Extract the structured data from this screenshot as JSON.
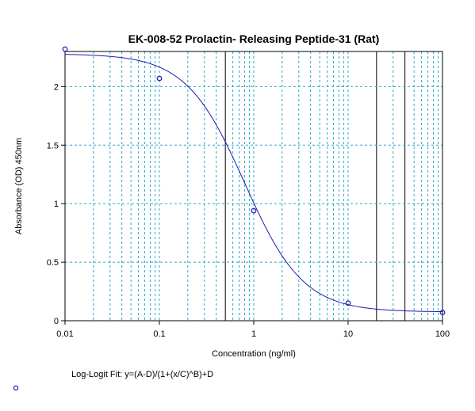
{
  "chart_data": {
    "type": "scatter",
    "title": "EK-008-52 Prolactin- Releasing Peptide-31 (Rat)",
    "xlabel": "Concentration (ng/ml)",
    "ylabel": "Absorbance (OD) 450nm",
    "x_scale": "log",
    "xlim": [
      0.01,
      100
    ],
    "ylim": [
      0,
      2.3
    ],
    "x_ticks": [
      "0.01",
      "0.1",
      "1",
      "10",
      "100"
    ],
    "y_ticks": [
      "0",
      "0.5",
      "1",
      "1.5",
      "2"
    ],
    "y_tick_values": [
      0,
      0.5,
      1,
      1.5,
      2
    ],
    "x_tick_values": [
      0.01,
      0.1,
      1,
      10,
      100
    ],
    "grid": true,
    "dark_gridlines_x": [
      0.5,
      20,
      40
    ],
    "series": [
      {
        "points": [
          {
            "x": 0.01,
            "y": 2.32
          },
          {
            "x": 0.1,
            "y": 2.07
          },
          {
            "x": 1,
            "y": 0.94
          },
          {
            "x": 10,
            "y": 0.15
          },
          {
            "x": 100,
            "y": 0.07
          }
        ]
      }
    ],
    "fit_curve": {
      "model": "Log-Logit Fit: y=(A-D)/(1+(x/C)^B)+D",
      "params": {
        "A": 2.28,
        "B": 1.4,
        "C": 0.8,
        "D": 0.075
      }
    },
    "footnote": "Log-Logit Fit: y=(A-D)/(1+(x/C)^B)+D",
    "colors": {
      "curve": "#1c1cb4",
      "points": "#1c1cb4",
      "grid": "#29a9c9",
      "dark_grid": "#000000"
    }
  }
}
